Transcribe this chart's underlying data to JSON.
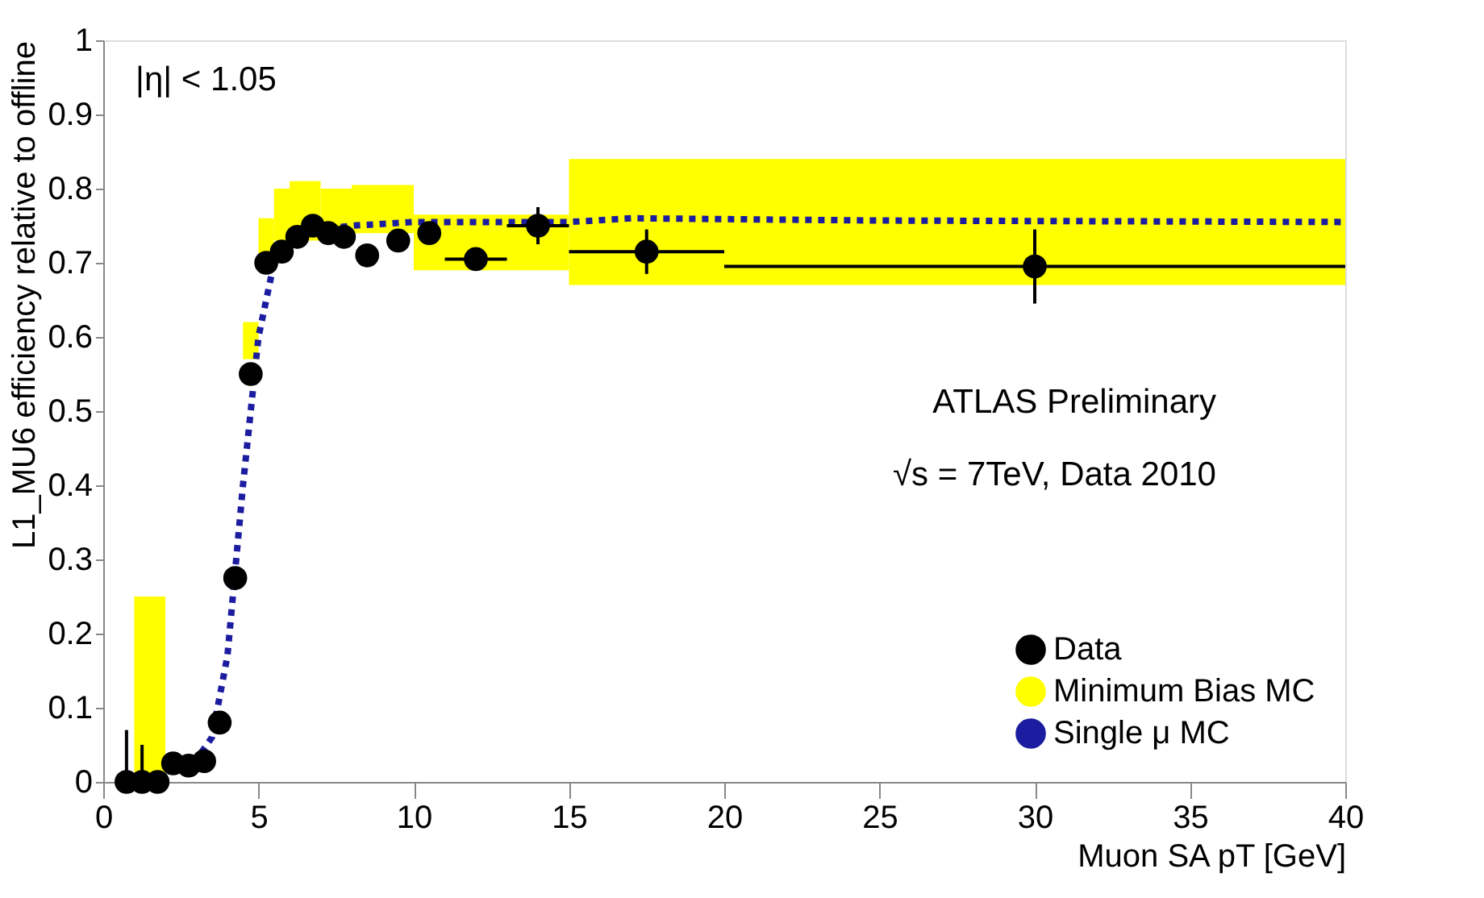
{
  "chart_data": {
    "type": "scatter",
    "xlabel": "Muon SA pT [GeV]",
    "ylabel": "L1_MU6 efficiency relative to offline",
    "annotations": [
      "|η| < 1.05",
      "ATLAS Preliminary",
      "√s = 7TeV, Data 2010"
    ],
    "xlim": [
      0,
      40
    ],
    "xticks": [
      0,
      5,
      10,
      15,
      20,
      25,
      30,
      35,
      40
    ],
    "ylim": [
      0,
      1
    ],
    "yticks": [
      0,
      0.1,
      0.2,
      0.3,
      0.4,
      0.5,
      0.6,
      0.7,
      0.8,
      0.9,
      1
    ],
    "grid": false,
    "legend": "bottom right",
    "series": [
      {
        "name": "Data",
        "color": "#000000",
        "marker": "circle",
        "x": [
          0.75,
          1.25,
          1.75,
          2.25,
          2.75,
          3.25,
          3.75,
          4.25,
          4.75,
          5.25,
          5.75,
          6.25,
          6.75,
          7.25,
          7.75,
          8.5,
          9.5,
          10.5,
          12,
          14,
          17.5,
          30
        ],
        "values": [
          0,
          0,
          0,
          0.025,
          0.022,
          0.028,
          0.08,
          0.275,
          0.55,
          0.7,
          0.715,
          0.735,
          0.75,
          0.74,
          0.735,
          0.71,
          0.73,
          0.74,
          0.705,
          0.75,
          0.715,
          0.695
        ],
        "errors": [
          [
            0,
            0.07
          ],
          [
            0,
            0.05
          ],
          null,
          null,
          null,
          null,
          null,
          null,
          null,
          null,
          null,
          null,
          null,
          null,
          null,
          null,
          null,
          null,
          0.015,
          0.025,
          0.03,
          0.05
        ],
        "xerrors": [
          null,
          null,
          null,
          null,
          null,
          null,
          null,
          null,
          null,
          null,
          null,
          null,
          null,
          null,
          null,
          null,
          null,
          null,
          1,
          1,
          2.5,
          10
        ]
      },
      {
        "name": "Minimum Bias MC",
        "type": "histogram",
        "color": "#ffff00",
        "bins": [
          1,
          2,
          4.5,
          5,
          5.5,
          6,
          7,
          8,
          10,
          15,
          40
        ],
        "base": [
          0,
          null,
          0.57,
          0.7,
          0.73,
          0.73,
          0.74,
          0.74,
          0.69,
          0.67
        ],
        "values": [
          0.25,
          null,
          0.05,
          0.06,
          0.07,
          0.08,
          0.06,
          0.065,
          0.075,
          0.17
        ]
      },
      {
        "name": "Single μ MC",
        "type": "line",
        "color": "#1c1ca0",
        "line_style": "dotted",
        "marker": "none",
        "x": [
          2.5,
          3,
          3.5,
          4,
          4.5,
          5,
          5.5,
          6,
          7,
          8,
          10,
          15,
          17,
          25,
          40
        ],
        "values": [
          0.02,
          0.03,
          0.06,
          0.17,
          0.4,
          0.6,
          0.7,
          0.735,
          0.745,
          0.75,
          0.755,
          0.755,
          0.76,
          0.757,
          0.755
        ]
      }
    ]
  }
}
